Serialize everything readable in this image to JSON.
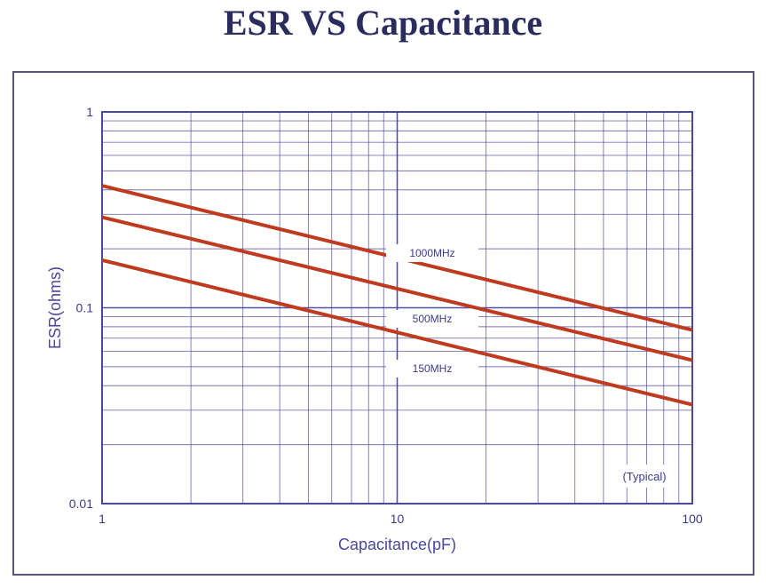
{
  "title": "ESR VS Capacitance",
  "chart_data": {
    "type": "line",
    "xlabel": "Capacitance(pF)",
    "ylabel": "ESR(ohms)",
    "x_scale": "log",
    "y_scale": "log",
    "xlim": [
      1,
      100
    ],
    "ylim": [
      0.01,
      1
    ],
    "x_ticks": [
      "1",
      "10",
      "100"
    ],
    "y_ticks": [
      "1",
      "0.1",
      "0.01"
    ],
    "grid": true,
    "note": "(Typical)",
    "series": [
      {
        "name": "1000MHz",
        "x": [
          1,
          100
        ],
        "y": [
          0.42,
          0.077
        ]
      },
      {
        "name": "500MHz",
        "x": [
          1,
          100
        ],
        "y": [
          0.29,
          0.054
        ]
      },
      {
        "name": "150MHz",
        "x": [
          1,
          100
        ],
        "y": [
          0.175,
          0.032
        ]
      }
    ],
    "colors": {
      "series": "#bf3a1e",
      "grid": "#4a47a0",
      "text": "#3d3a8c"
    }
  }
}
